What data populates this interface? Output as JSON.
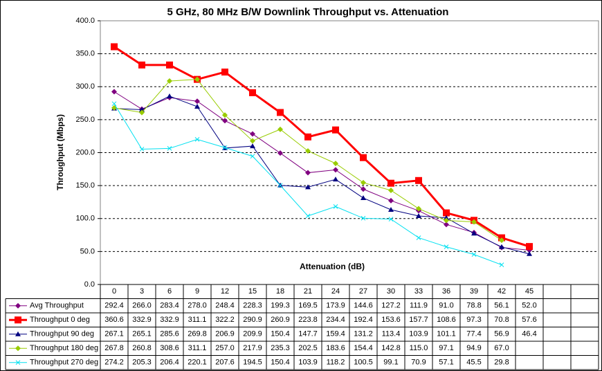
{
  "chart_data": {
    "type": "line",
    "title": "5 GHz, 80 MHz B/W Downlink Throughput vs. Attenuation",
    "x_label": "Attenuation (dB)",
    "y_label": "Throughput (Mbps)",
    "categories": [
      0,
      3,
      6,
      9,
      12,
      15,
      18,
      21,
      24,
      27,
      30,
      33,
      36,
      39,
      42,
      45,
      null,
      null
    ],
    "ylim": [
      0,
      400
    ],
    "yticks": [
      {
        "value": 0,
        "label": "0.0"
      },
      {
        "value": 50,
        "label": "50.0"
      },
      {
        "value": 100,
        "label": "100.0"
      },
      {
        "value": 150,
        "label": "150.0"
      },
      {
        "value": 200,
        "label": "200.0"
      },
      {
        "value": 250,
        "label": "250.0"
      },
      {
        "value": 300,
        "label": "300.0"
      },
      {
        "value": 350,
        "label": "350.0"
      },
      {
        "value": 400,
        "label": "400.0"
      }
    ],
    "grid": true,
    "series": [
      {
        "name": "Avg Throughput",
        "color": "#800080",
        "marker": "diamond",
        "width": 1,
        "values": [
          292.4,
          266.0,
          283.4,
          278.0,
          248.4,
          228.3,
          199.3,
          169.5,
          173.9,
          144.6,
          127.2,
          111.9,
          91.0,
          78.8,
          56.1,
          52.0,
          null,
          null
        ],
        "value_labels": [
          "292.4",
          "266.0",
          "283.4",
          "278.0",
          "248.4",
          "228.3",
          "199.3",
          "169.5",
          "173.9",
          "144.6",
          "127.2",
          "111.9",
          "91.0",
          "78.8",
          "56.1",
          "52.0",
          null,
          null
        ]
      },
      {
        "name": "Throughput 0 deg",
        "color": "#ff0000",
        "marker": "square",
        "width": 3,
        "values": [
          360.6,
          332.9,
          332.9,
          311.1,
          322.2,
          290.9,
          260.9,
          223.8,
          234.4,
          192.4,
          153.6,
          157.7,
          108.6,
          97.3,
          70.8,
          57.6,
          null,
          null
        ],
        "value_labels": [
          "360.6",
          "332.9",
          "332.9",
          "311.1",
          "322.2",
          "290.9",
          "260.9",
          "223.8",
          "234.4",
          "192.4",
          "153.6",
          "157.7",
          "108.6",
          "97.3",
          "70.8",
          "57.6",
          null,
          null
        ]
      },
      {
        "name": "Throughput 90 deg",
        "color": "#000080",
        "marker": "triangle",
        "width": 1,
        "values": [
          267.1,
          265.1,
          285.6,
          269.8,
          206.9,
          209.9,
          150.4,
          147.7,
          159.4,
          131.2,
          113.4,
          103.9,
          101.1,
          77.4,
          56.9,
          46.4,
          null,
          null
        ],
        "value_labels": [
          "267.1",
          "265.1",
          "285.6",
          "269.8",
          "206.9",
          "209.9",
          "150.4",
          "147.7",
          "159.4",
          "131.2",
          "113.4",
          "103.9",
          "101.1",
          "77.4",
          "56.9",
          "46.4",
          null,
          null
        ]
      },
      {
        "name": "Throughput 180 deg",
        "color": "#99cc00",
        "marker": "diamond",
        "width": 1,
        "values": [
          267.8,
          260.8,
          308.6,
          311.1,
          257.0,
          217.9,
          235.3,
          202.5,
          183.6,
          154.4,
          142.8,
          115.0,
          97.1,
          94.9,
          67.0,
          null,
          null,
          null
        ],
        "value_labels": [
          "267.8",
          "260.8",
          "308.6",
          "311.1",
          "257.0",
          "217.9",
          "235.3",
          "202.5",
          "183.6",
          "154.4",
          "142.8",
          "115.0",
          "97.1",
          "94.9",
          "67.0",
          null,
          null,
          null
        ]
      },
      {
        "name": "Throughput 270 deg",
        "color": "#00e0f0",
        "marker": "cross",
        "width": 1,
        "values": [
          274.2,
          205.3,
          206.4,
          220.1,
          207.6,
          194.5,
          150.4,
          103.9,
          118.2,
          100.5,
          99.1,
          70.9,
          57.1,
          45.5,
          29.8,
          null,
          null,
          null
        ],
        "value_labels": [
          "274.2",
          "205.3",
          "206.4",
          "220.1",
          "207.6",
          "194.5",
          "150.4",
          "103.9",
          "118.2",
          "100.5",
          "99.1",
          "70.9",
          "57.1",
          "45.5",
          "29.8",
          null,
          null,
          null
        ]
      }
    ]
  }
}
